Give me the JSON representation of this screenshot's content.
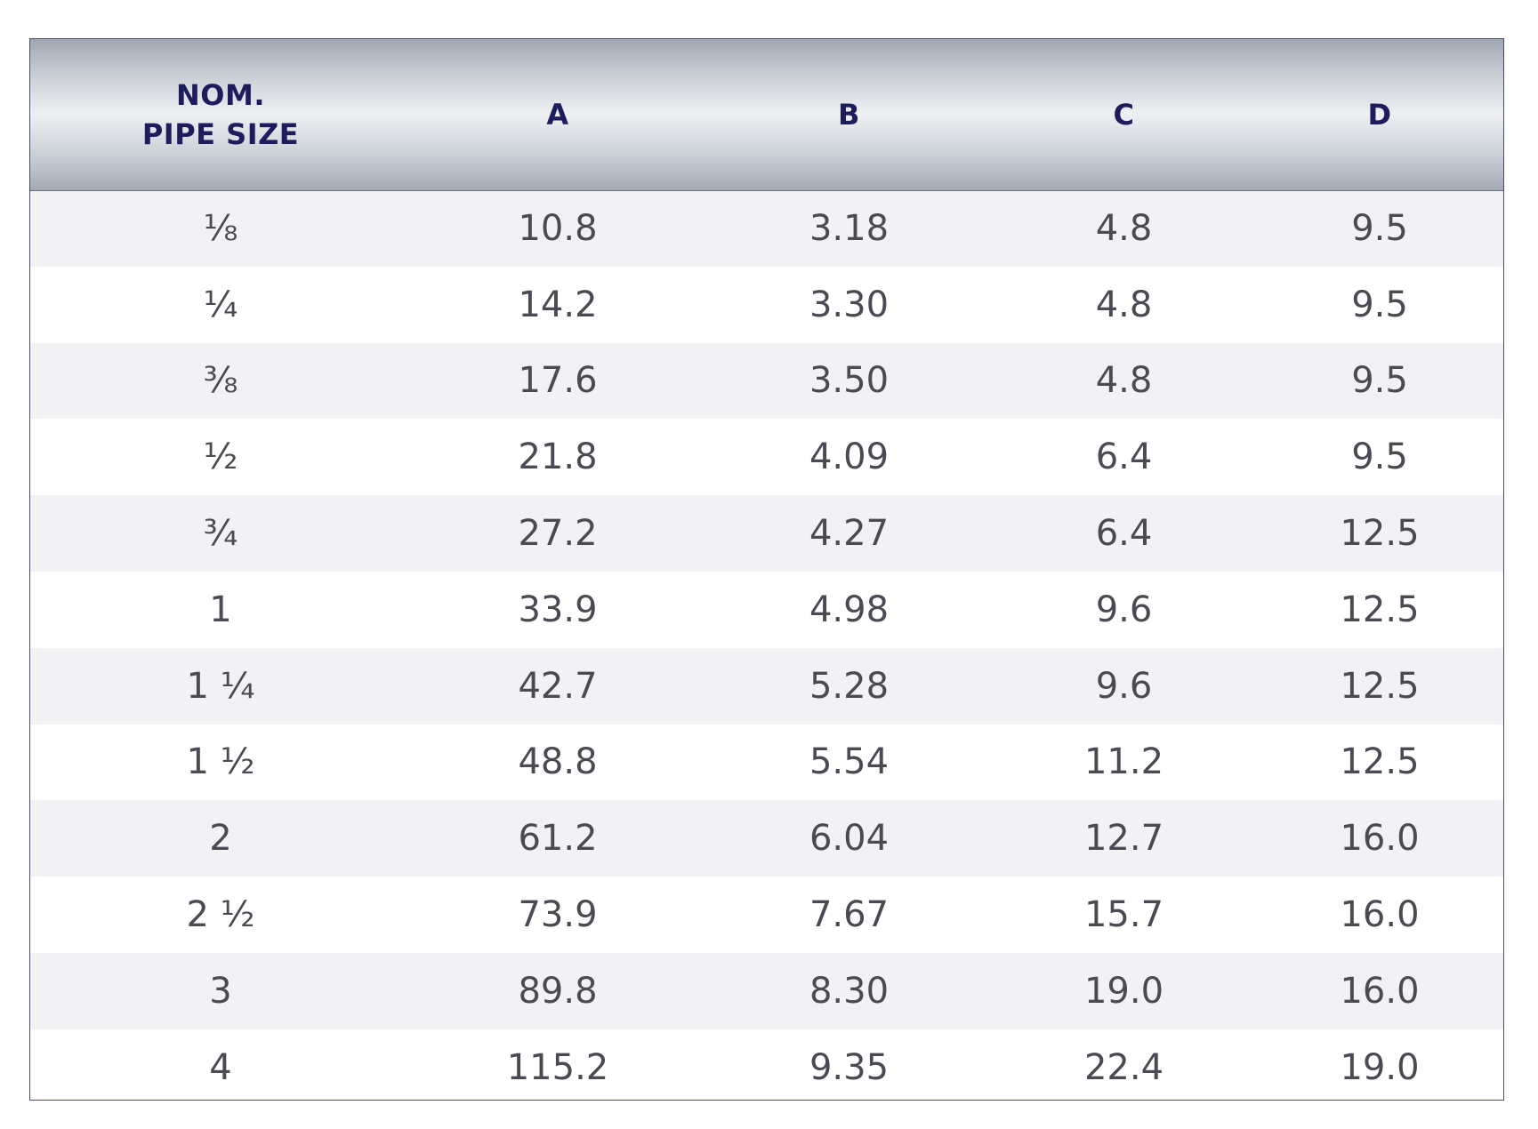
{
  "table": {
    "headers": {
      "size_line1": "NOM.",
      "size_line2": "PIPE SIZE",
      "a": "A",
      "b": "B",
      "c": "C",
      "d": "D"
    },
    "rows": [
      [
        "⅛",
        "10.8",
        "3.18",
        "4.8",
        "9.5"
      ],
      [
        "¼",
        "14.2",
        "3.30",
        "4.8",
        "9.5"
      ],
      [
        "⅜",
        "17.6",
        "3.50",
        "4.8",
        "9.5"
      ],
      [
        "½",
        "21.8",
        "4.09",
        "6.4",
        "9.5"
      ],
      [
        "¾",
        "27.2",
        "4.27",
        "6.4",
        "12.5"
      ],
      [
        "1",
        "33.9",
        "4.98",
        "9.6",
        "12.5"
      ],
      [
        "1 ¼",
        "42.7",
        "5.28",
        "9.6",
        "12.5"
      ],
      [
        "1 ½",
        "48.8",
        "5.54",
        "11.2",
        "12.5"
      ],
      [
        "2",
        "61.2",
        "6.04",
        "12.7",
        "16.0"
      ],
      [
        "2 ½",
        "73.9",
        "7.67",
        "15.7",
        "16.0"
      ],
      [
        "3",
        "89.8",
        "8.30",
        "19.0",
        "16.0"
      ],
      [
        "4",
        "115.2",
        "9.35",
        "22.4",
        "19.0"
      ]
    ]
  }
}
